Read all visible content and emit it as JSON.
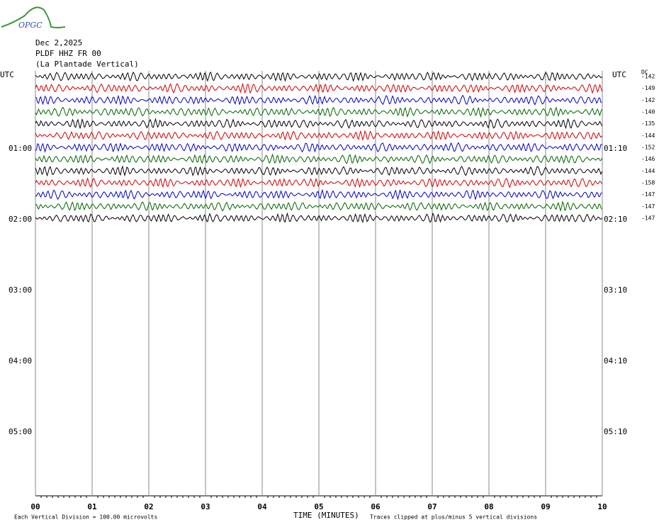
{
  "header": {
    "logo": "OPGC",
    "date": "Dec 2,2025",
    "station": "PLDF HHZ FR 00",
    "location": "(La Plantade Vertical)"
  },
  "left_axis": {
    "title": "UTC",
    "labels": [
      "01:00",
      "02:00",
      "03:00",
      "04:00",
      "05:00"
    ]
  },
  "right_axis": {
    "title": "UTC",
    "labels": [
      "01:10",
      "02:10",
      "03:10",
      "04:10",
      "05:10"
    ]
  },
  "dc_title": "DC",
  "dc_offsets": [
    -142,
    -149,
    -142,
    -140,
    -135,
    -144,
    -152,
    -146,
    -144,
    -158,
    -147,
    -147,
    -147
  ],
  "trace_colors": [
    "#000000",
    "#d00000",
    "#0000c0",
    "#006400"
  ],
  "x_axis": {
    "title": "TIME (MINUTES)",
    "ticks": [
      "00",
      "01",
      "02",
      "03",
      "04",
      "05",
      "06",
      "07",
      "08",
      "09",
      "10"
    ]
  },
  "footer": {
    "scale": "Each Vertical Division =  100.00 microvolts",
    "clip": "Traces clipped at plus/minus 5 vertical divisions"
  }
}
